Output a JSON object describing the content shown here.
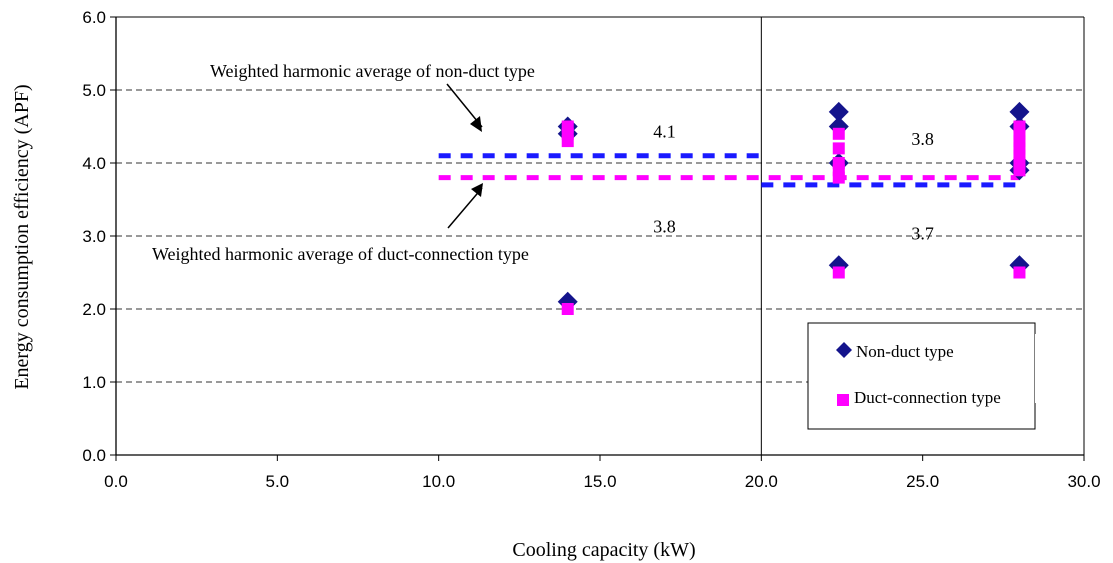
{
  "chart_data": {
    "type": "scatter",
    "xlabel": "Cooling capacity (kW)",
    "ylabel": "Energy consumption efficiency (APF)",
    "xlim": [
      0,
      30
    ],
    "ylim": [
      0,
      6
    ],
    "x_ticks": [
      "0.0",
      "5.0",
      "10.0",
      "15.0",
      "20.0",
      "25.0",
      "30.0"
    ],
    "y_ticks": [
      "0.0",
      "1.0",
      "2.0",
      "3.0",
      "4.0",
      "5.0",
      "6.0"
    ],
    "grid": "horizontal dashed",
    "reference_line_x": 20,
    "series": [
      {
        "name": "Non-duct type",
        "marker": "diamond",
        "color": "#14148c",
        "points": [
          [
            14,
            4.5
          ],
          [
            14,
            4.4
          ],
          [
            14,
            2.1
          ],
          [
            22.4,
            4.7
          ],
          [
            22.4,
            4.5
          ],
          [
            22.4,
            4.0
          ],
          [
            22.4,
            2.6
          ],
          [
            28,
            4.7
          ],
          [
            28,
            4.5
          ],
          [
            28,
            4.0
          ],
          [
            28,
            3.9
          ],
          [
            28,
            2.6
          ]
        ]
      },
      {
        "name": "Duct-connection type",
        "marker": "square",
        "color": "#ff00ff",
        "points": [
          [
            14,
            4.5
          ],
          [
            14,
            4.4
          ],
          [
            14,
            4.3
          ],
          [
            14,
            2.0
          ],
          [
            22.4,
            4.4
          ],
          [
            22.4,
            4.2
          ],
          [
            22.4,
            4.0
          ],
          [
            22.4,
            3.9
          ],
          [
            22.4,
            3.8
          ],
          [
            22.4,
            2.5
          ],
          [
            28,
            4.5
          ],
          [
            28,
            4.4
          ],
          [
            28,
            4.3
          ],
          [
            28,
            4.2
          ],
          [
            28,
            4.1
          ],
          [
            28,
            4.0
          ],
          [
            28,
            3.9
          ],
          [
            28,
            2.5
          ]
        ]
      }
    ],
    "averages": [
      {
        "series": "Non-duct type",
        "color": "#1a1aff",
        "x_range": [
          10,
          20
        ],
        "value": 4.1,
        "label": "4.1"
      },
      {
        "series": "Duct-connection type",
        "color": "#ff00ff",
        "x_range": [
          10,
          28
        ],
        "value": 3.8,
        "label": "3.8"
      },
      {
        "series": "Non-duct type",
        "color": "#1a1aff",
        "x_range": [
          20,
          28
        ],
        "value": 3.7,
        "label": "3.7"
      }
    ],
    "value_labels": [
      {
        "text": "4.1",
        "x": 17.0,
        "y": 4.35
      },
      {
        "text": "3.8",
        "x": 17.0,
        "y": 3.05
      },
      {
        "text": "3.8",
        "x": 25.0,
        "y": 4.25
      },
      {
        "text": "3.7",
        "x": 25.0,
        "y": 2.95
      }
    ],
    "annotations": [
      {
        "text": "Weighted harmonic average of non-duct type"
      },
      {
        "text": "Weighted harmonic average of duct-connection type"
      }
    ],
    "legend": {
      "position": "bottom-right",
      "entries": [
        "Non-duct type",
        "Duct-connection type"
      ]
    }
  }
}
